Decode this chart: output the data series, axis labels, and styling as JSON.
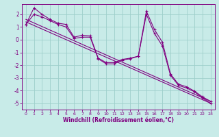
{
  "title": "",
  "xlabel": "Windchill (Refroidissement éolien,°C)",
  "ylabel": "",
  "bg_color": "#c8ebe8",
  "grid_color": "#9ecfcb",
  "line_color": "#800080",
  "xlim": [
    -0.5,
    23.5
  ],
  "ylim": [
    -5.5,
    2.8
  ],
  "yticks": [
    -5,
    -4,
    -3,
    -2,
    -1,
    0,
    1,
    2
  ],
  "xticks": [
    0,
    1,
    2,
    3,
    4,
    5,
    6,
    7,
    8,
    9,
    10,
    11,
    12,
    13,
    14,
    15,
    16,
    17,
    18,
    19,
    20,
    21,
    22,
    23
  ],
  "series1_x": [
    0,
    1,
    2,
    3,
    4,
    5,
    6,
    7,
    8,
    9,
    10,
    11,
    12,
    13,
    14,
    15,
    16,
    17,
    18,
    19,
    20,
    21,
    22,
    23
  ],
  "series1_y": [
    1.2,
    2.5,
    2.0,
    1.6,
    1.3,
    1.2,
    0.2,
    0.35,
    0.3,
    -1.45,
    -1.8,
    -1.8,
    -1.55,
    -1.45,
    -1.3,
    2.25,
    0.8,
    -0.2,
    -2.7,
    -3.5,
    -3.7,
    -4.05,
    -4.5,
    -4.85
  ],
  "series2_x": [
    0,
    1,
    2,
    3,
    4,
    5,
    6,
    7,
    8,
    9,
    10,
    11,
    12,
    13,
    14,
    15,
    16,
    17,
    18,
    19,
    20,
    21,
    22,
    23
  ],
  "series2_y": [
    1.2,
    2.0,
    1.8,
    1.5,
    1.2,
    1.0,
    0.1,
    0.2,
    0.2,
    -1.5,
    -1.9,
    -1.9,
    -1.6,
    -1.5,
    -1.3,
    2.0,
    0.5,
    -0.5,
    -2.8,
    -3.6,
    -3.8,
    -4.1,
    -4.6,
    -5.0
  ],
  "series3_x": [
    0,
    23
  ],
  "series3_y": [
    1.6,
    -4.85
  ],
  "series4_x": [
    0,
    23
  ],
  "series4_y": [
    1.4,
    -5.0
  ]
}
